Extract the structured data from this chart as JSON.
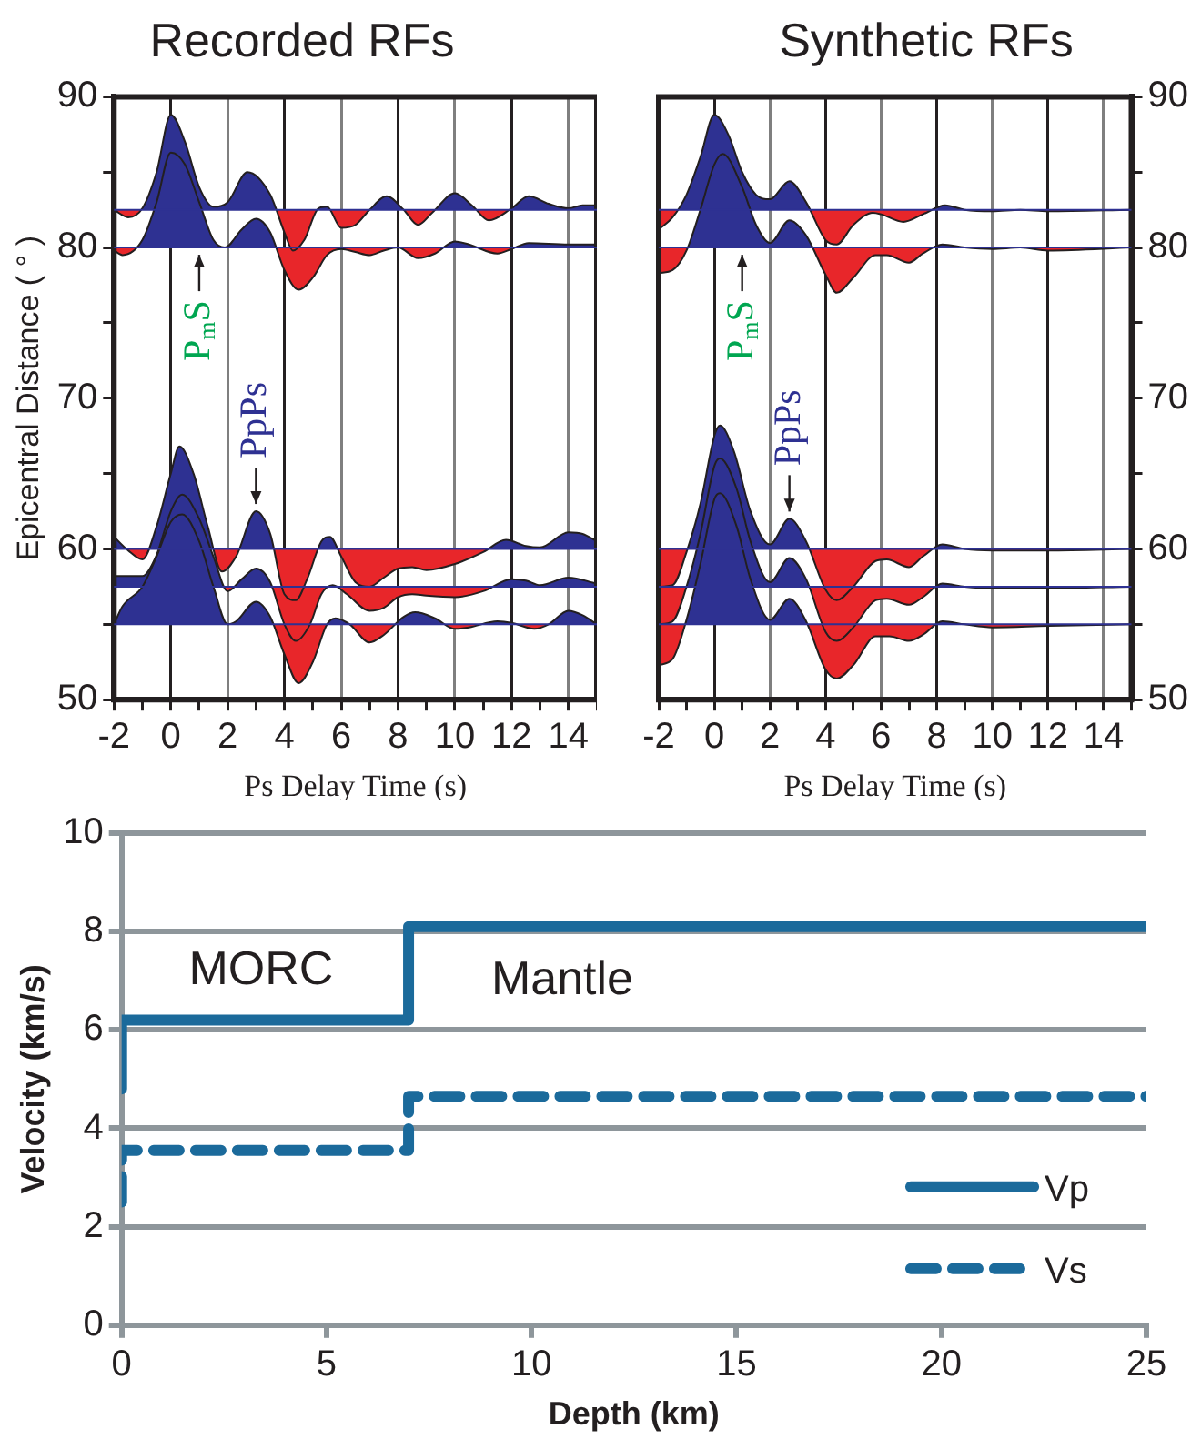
{
  "chart_data": [
    {
      "type": "line",
      "title": "Recorded RFs",
      "xlabel": "Ps Delay Time (s)",
      "ylabel": "Epicentral Distance ( ° )",
      "grid": "x",
      "xlim": [
        -2,
        15
      ],
      "xticks": [
        -2,
        {
          "value": -1,
          "label": null
        },
        0,
        {
          "value": 1,
          "label": null
        },
        2,
        {
          "value": 3,
          "label": null
        },
        4,
        {
          "value": 5,
          "label": null
        },
        6,
        {
          "value": 7,
          "label": null
        },
        8,
        {
          "value": 9,
          "label": null
        },
        10,
        {
          "value": 11,
          "label": null
        },
        12,
        {
          "value": 13,
          "label": null
        },
        14,
        {
          "value": 15,
          "label": null
        }
      ],
      "ylim": [
        50,
        90
      ],
      "yticks": [
        50,
        {
          "value": 55,
          "label": null
        },
        60,
        {
          "value": 65,
          "label": null
        },
        70,
        {
          "value": 75,
          "label": null
        },
        80,
        {
          "value": 85,
          "label": null
        },
        90
      ],
      "annotations": [
        {
          "text": "P$_{m}$S",
          "x": 1,
          "y": 80
        },
        {
          "text": "PpPs",
          "x": 3,
          "y": 62.5
        }
      ],
      "ref_lines": [
        {
          "axis": "y",
          "value": 82.5,
          "color": "#2e3192"
        },
        {
          "axis": "y",
          "value": 80,
          "color": "#2e3192"
        },
        {
          "axis": "y",
          "value": 60,
          "color": "#2e3192"
        },
        {
          "axis": "y",
          "value": 57.5,
          "color": "#2e3192"
        },
        {
          "axis": "y",
          "value": 55,
          "color": "#2e3192"
        }
      ],
      "series": [
        {
          "color": "#231f20",
          "x": [
            -2,
            -1.5,
            -1,
            -0.5,
            0,
            0.5,
            1,
            1.5,
            2,
            2.7,
            3.5,
            4,
            4.3,
            4.7,
            5.2,
            5.5,
            6,
            6.5,
            7,
            7.6,
            8.2,
            8.7,
            9.2,
            10,
            10.6,
            11.2,
            12,
            12.6,
            13.3,
            14,
            14.5,
            15
          ],
          "values": [
            82.5,
            82,
            82.6,
            85,
            88.8,
            87,
            84,
            82.7,
            83,
            85,
            83.5,
            81,
            79.8,
            80.5,
            82.6,
            82.7,
            81.3,
            81.5,
            82.5,
            83.4,
            82.5,
            81.5,
            82.3,
            83.6,
            82.8,
            81.8,
            82.6,
            83.4,
            82.9,
            82.6,
            82.8,
            82.8
          ]
        },
        {
          "color": "#231f20",
          "x": [
            -2,
            -1.7,
            -1,
            -0.5,
            0,
            0.5,
            1,
            1.5,
            1.9,
            2.5,
            3,
            3.5,
            4,
            4.5,
            5,
            5.5,
            6,
            6.5,
            7,
            7.5,
            8,
            8.7,
            9.3,
            10,
            10.5,
            11.5,
            12,
            12.6,
            14,
            15
          ],
          "values": [
            79.8,
            79.5,
            80.5,
            83,
            86.3,
            85.5,
            83,
            80.5,
            80,
            81.2,
            81.9,
            81,
            78.5,
            77.2,
            78,
            79.5,
            79.9,
            79.7,
            79.5,
            79.8,
            80,
            79.3,
            79.6,
            80.4,
            80.2,
            79.6,
            79.9,
            80.3,
            80.2,
            80.2
          ]
        },
        {
          "color": "#231f20",
          "x": [
            -2,
            -1.5,
            -1,
            -0.5,
            0,
            0.3,
            0.8,
            1.3,
            1.8,
            2.3,
            3,
            3.5,
            4,
            4.4,
            4.8,
            5.3,
            5.6,
            6,
            6.5,
            7,
            7.5,
            8,
            8.5,
            9,
            10,
            11,
            11.8,
            12.5,
            13,
            14,
            14.5,
            15
          ],
          "values": [
            60.8,
            59.9,
            59.3,
            61.5,
            65,
            66.8,
            65,
            61.5,
            58.5,
            59.5,
            62.5,
            61,
            57,
            56.6,
            58,
            60.5,
            60.8,
            59.5,
            57.8,
            57.5,
            58.1,
            58.7,
            58.8,
            58.6,
            59,
            59.8,
            60.6,
            60.2,
            60.1,
            61.1,
            61,
            60.5
          ]
        },
        {
          "color": "#231f20",
          "x": [
            -2,
            -1,
            -0.5,
            0,
            0.4,
            1,
            1.5,
            2,
            2.5,
            3,
            3.5,
            4,
            4.4,
            4.9,
            5.3,
            5.7,
            6.2,
            7,
            7.5,
            8,
            8.5,
            9,
            10,
            11,
            12,
            12.5,
            13,
            14,
            15
          ],
          "values": [
            58.2,
            58.2,
            59.6,
            62.5,
            63.6,
            62,
            59.5,
            57.2,
            58,
            58.7,
            57.8,
            55,
            53.9,
            55,
            57,
            57.6,
            57,
            55.9,
            56.1,
            56.8,
            57,
            56.9,
            56.8,
            57.2,
            58,
            57.9,
            57.6,
            58.1,
            57.7
          ]
        },
        {
          "color": "#231f20",
          "x": [
            -2,
            -1.7,
            -1,
            -0.5,
            0,
            0.4,
            1,
            1.5,
            2,
            2.3,
            3,
            3.5,
            4,
            4.5,
            5,
            5.5,
            5.8,
            6.3,
            7,
            7.5,
            8.2,
            8.6,
            9.3,
            10,
            10.5,
            11.5,
            12,
            12.8,
            13.3,
            14,
            14.5,
            15
          ],
          "values": [
            55,
            56.2,
            57.5,
            59.5,
            61.8,
            62.3,
            60.5,
            57.5,
            55,
            55.2,
            56.5,
            55.5,
            53,
            51.1,
            52.5,
            55,
            55.4,
            55,
            53.8,
            54.3,
            55.5,
            55.8,
            55.4,
            54.7,
            54.8,
            55.2,
            55.1,
            54.7,
            55,
            55.9,
            55.6,
            55
          ]
        }
      ]
    },
    {
      "type": "line",
      "title": "Synthetic RFs",
      "xlabel": "Ps Delay Time (s)",
      "grid": "x",
      "xlim": [
        -2,
        15
      ],
      "xticks": [
        -2,
        {
          "value": -1,
          "label": null
        },
        0,
        {
          "value": 1,
          "label": null
        },
        2,
        {
          "value": 3,
          "label": null
        },
        4,
        {
          "value": 5,
          "label": null
        },
        6,
        {
          "value": 7,
          "label": null
        },
        8,
        {
          "value": 9,
          "label": null
        },
        10,
        {
          "value": 11,
          "label": null
        },
        12,
        {
          "value": 13,
          "label": null
        },
        14,
        {
          "value": 15,
          "label": null
        }
      ],
      "ylim": [
        50,
        90
      ],
      "yticks": [
        50,
        {
          "value": 55,
          "label": null
        },
        60,
        {
          "value": 65,
          "label": null
        },
        70,
        {
          "value": 75,
          "label": null
        },
        80,
        {
          "value": 85,
          "label": null
        },
        90
      ],
      "annotations": [
        {
          "text": "P$_{m}$S",
          "x": 1,
          "y": 80
        },
        {
          "text": "PpPs",
          "x": 2.7,
          "y": 62
        }
      ],
      "ref_lines": [
        {
          "axis": "y",
          "value": 82.5,
          "color": "#2e3192"
        },
        {
          "axis": "y",
          "value": 80,
          "color": "#2e3192"
        },
        {
          "axis": "y",
          "value": 60,
          "color": "#2e3192"
        },
        {
          "axis": "y",
          "value": 57.5,
          "color": "#2e3192"
        },
        {
          "axis": "y",
          "value": 55,
          "color": "#2e3192"
        }
      ],
      "series": [
        {
          "color": "#231f20",
          "x": [
            -2,
            -1.5,
            -1,
            -0.5,
            0,
            0.5,
            1,
            1.5,
            2,
            2.7,
            3.3,
            4,
            4.4,
            5,
            5.7,
            6,
            6.8,
            7.5,
            8.3,
            9,
            10,
            11,
            12,
            15
          ],
          "values": [
            81.2,
            82,
            83.5,
            86,
            88.8,
            87.5,
            85,
            83.5,
            83.2,
            84.4,
            83,
            80.5,
            80.2,
            81.5,
            82.3,
            82.2,
            81.7,
            82.2,
            82.8,
            82.5,
            82.4,
            82.5,
            82.4,
            82.5
          ]
        },
        {
          "color": "#231f20",
          "x": [
            -2,
            -1.5,
            -1,
            -0.5,
            0,
            0.3,
            1,
            1.5,
            2,
            2.7,
            3.3,
            4,
            4.4,
            5,
            5.8,
            6.2,
            7,
            7.5,
            8.2,
            9,
            10,
            11,
            12,
            15
          ],
          "values": [
            78.3,
            78.5,
            79.8,
            82.5,
            85.5,
            86.2,
            84,
            81.5,
            80.3,
            81.8,
            80.8,
            78.2,
            77,
            78,
            79.5,
            79.5,
            79,
            79.6,
            80.2,
            80,
            79.9,
            80,
            79.8,
            80
          ]
        },
        {
          "color": "#231f20",
          "x": [
            -2,
            -1.5,
            -1,
            -0.5,
            0,
            0.2,
            0.7,
            1.3,
            2,
            2.7,
            3.3,
            4,
            4.4,
            5,
            5.8,
            6.2,
            7,
            7.5,
            8.2,
            9,
            10,
            12,
            15
          ],
          "values": [
            57.5,
            57.6,
            59.8,
            63,
            67.5,
            68.2,
            66.5,
            62.5,
            60.3,
            62,
            60.5,
            57.3,
            56.6,
            57.5,
            59.2,
            59.3,
            58.8,
            59.5,
            60.3,
            60,
            59.9,
            59.9,
            60
          ]
        },
        {
          "color": "#231f20",
          "x": [
            -2,
            -1.5,
            -1,
            -0.5,
            0,
            0.2,
            0.8,
            1.3,
            2,
            2.7,
            3.3,
            4,
            4.4,
            5,
            5.8,
            6.2,
            7,
            7.5,
            8.2,
            9,
            10,
            12,
            15
          ],
          "values": [
            55,
            55.2,
            57.5,
            61,
            65.5,
            66,
            64,
            60.5,
            57.8,
            59.4,
            58,
            54.5,
            53.9,
            54.8,
            56.6,
            56.7,
            56.3,
            56.8,
            57.7,
            57.5,
            57.4,
            57.4,
            57.5
          ]
        },
        {
          "color": "#231f20",
          "x": [
            -2,
            -1.5,
            -1,
            -0.5,
            0,
            0.2,
            0.8,
            1.3,
            2,
            2.7,
            3.3,
            4,
            4.4,
            5,
            5.8,
            6.3,
            7,
            7.5,
            8.2,
            9,
            10,
            12,
            15
          ],
          "values": [
            52.3,
            52.7,
            55.3,
            59,
            63.3,
            63.7,
            61.5,
            58,
            55.3,
            56.7,
            55.2,
            52,
            51.4,
            52.3,
            54.2,
            54.2,
            53.9,
            54.3,
            55.2,
            55,
            54.8,
            54.9,
            55
          ]
        }
      ]
    },
    {
      "type": "line",
      "xlabel": "Depth (km)",
      "ylabel": "Velocity (km/s)",
      "grid": "y",
      "legend": "bottom right",
      "xlim": [
        0,
        25
      ],
      "xticks": [
        0,
        5,
        10,
        15,
        20,
        25
      ],
      "ylim": [
        0,
        10
      ],
      "yticks": [
        0,
        2,
        4,
        6,
        8,
        10
      ],
      "annotations": [
        "MORC",
        "Mantle"
      ],
      "series": [
        {
          "name": "Vp",
          "color": "#1b6a9b",
          "x": [
            0,
            0,
            7,
            7,
            25
          ],
          "values": [
            4.8,
            6.2,
            6.2,
            8.1,
            8.1
          ]
        },
        {
          "name": "Vs",
          "color": "#1b6a9b",
          "line_style": "dashed",
          "x": [
            0,
            0,
            7,
            7,
            25
          ],
          "values": [
            2.5,
            3.55,
            3.55,
            4.65,
            4.65
          ]
        }
      ]
    }
  ]
}
